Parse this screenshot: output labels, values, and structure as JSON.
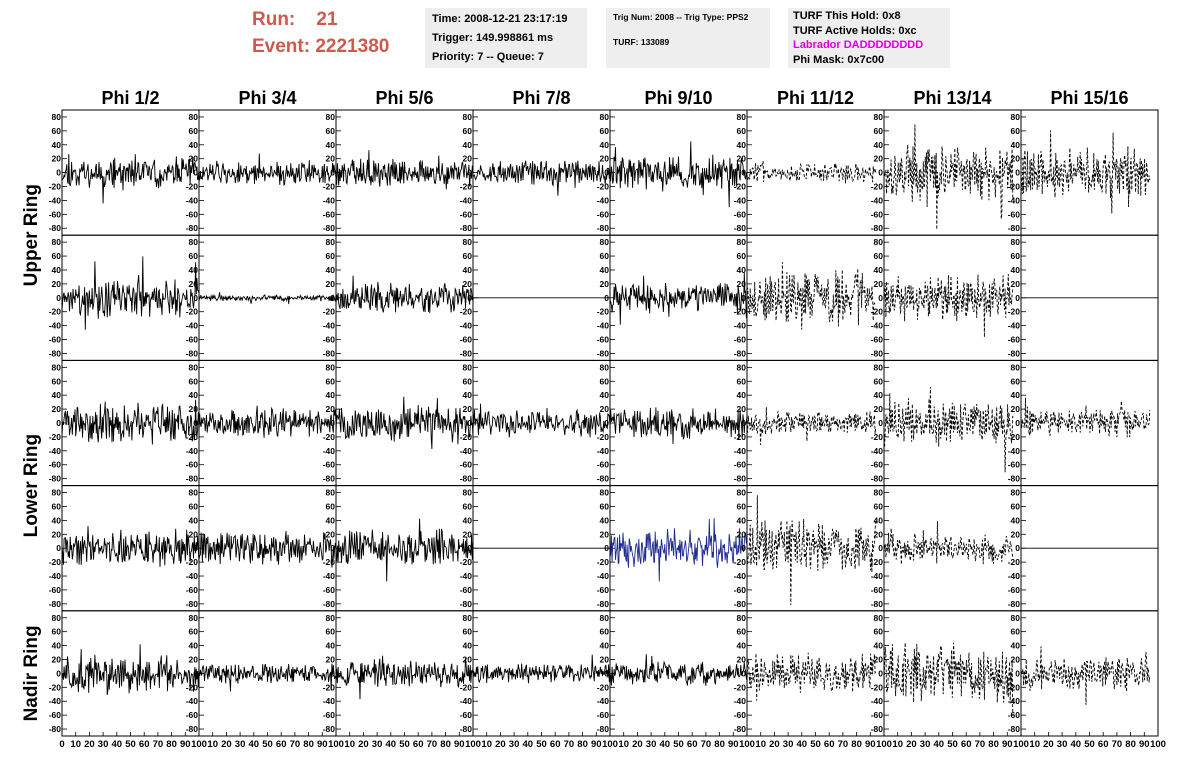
{
  "header": {
    "run_label": "Run:",
    "run_value": "21",
    "event_label": "Event:",
    "event_value": "2221380",
    "time": "Time: 2008-12-21 23:17:19",
    "trigger": "Trigger: 149.998861 ms",
    "priority": "Priority: 7 -- Queue: 7",
    "trig_num": "Trig Num: 2008 -- Trig Type: PPS2",
    "turf": "TURF: 133089",
    "turf_hold": "TURF This Hold: 0x8",
    "turf_active": "TURF Active Holds: 0xc",
    "labrador": "Labrador DADDDDDDDD",
    "phi_mask": "Phi Mask: 0x7c00"
  },
  "colors": {
    "run_text": "#d0584c",
    "labrador_text": "#e000e0",
    "highlight_trace": "#1f2a8f",
    "trace": "#000000"
  },
  "chart_data": {
    "type": "line",
    "layout": "grid",
    "columns": [
      "Phi 1/2",
      "Phi 3/4",
      "Phi 5/6",
      "Phi 7/8",
      "Phi 9/10",
      "Phi 11/12",
      "Phi 13/14",
      "Phi 15/16"
    ],
    "row_groups": [
      "Upper Ring",
      "Lower Ring",
      "Nadir Ring"
    ],
    "yticks": [
      "-80",
      "-60",
      "-40",
      "-20",
      "0",
      "20",
      "40",
      "60",
      "80"
    ],
    "xticks": [
      "0",
      "10",
      "20",
      "30",
      "40",
      "50",
      "60",
      "70",
      "80",
      "90",
      "100"
    ],
    "xlim": [
      0,
      100
    ],
    "ylim": [
      -90,
      90
    ],
    "grid": false,
    "panels": [
      {
        "row": 1,
        "col": 1,
        "style": "solid",
        "amplitude": 15,
        "seed": 11
      },
      {
        "row": 1,
        "col": 2,
        "style": "solid",
        "amplitude": 12,
        "seed": 12
      },
      {
        "row": 1,
        "col": 3,
        "style": "solid",
        "amplitude": 14,
        "seed": 13
      },
      {
        "row": 1,
        "col": 4,
        "style": "solid",
        "amplitude": 13,
        "seed": 14
      },
      {
        "row": 1,
        "col": 5,
        "style": "solid",
        "amplitude": 18,
        "seed": 15
      },
      {
        "row": 1,
        "col": 6,
        "style": "dashed",
        "amplitude": 10,
        "seed": 16
      },
      {
        "row": 1,
        "col": 7,
        "style": "dashed",
        "amplitude": 28,
        "seed": 17
      },
      {
        "row": 1,
        "col": 8,
        "style": "dashed",
        "amplitude": 25,
        "seed": 18
      },
      {
        "row": 2,
        "col": 1,
        "style": "solid",
        "amplitude": 20,
        "seed": 21
      },
      {
        "row": 2,
        "col": 2,
        "style": "solid",
        "amplitude": 3,
        "seed": 22
      },
      {
        "row": 2,
        "col": 3,
        "style": "solid",
        "amplitude": 15,
        "seed": 23
      },
      {
        "row": 2,
        "col": 4,
        "style": "flat",
        "amplitude": 0,
        "seed": 24
      },
      {
        "row": 2,
        "col": 5,
        "style": "solid",
        "amplitude": 15,
        "seed": 25
      },
      {
        "row": 2,
        "col": 6,
        "style": "dashed",
        "amplitude": 28,
        "seed": 26
      },
      {
        "row": 2,
        "col": 7,
        "style": "dashed",
        "amplitude": 22,
        "seed": 27
      },
      {
        "row": 2,
        "col": 8,
        "style": "flat",
        "amplitude": 0,
        "seed": 28
      },
      {
        "row": 3,
        "col": 1,
        "style": "solid",
        "amplitude": 20,
        "seed": 31
      },
      {
        "row": 3,
        "col": 2,
        "style": "solid",
        "amplitude": 14,
        "seed": 32
      },
      {
        "row": 3,
        "col": 3,
        "style": "solid",
        "amplitude": 18,
        "seed": 33
      },
      {
        "row": 3,
        "col": 4,
        "style": "solid",
        "amplitude": 14,
        "seed": 34
      },
      {
        "row": 3,
        "col": 5,
        "style": "solid",
        "amplitude": 16,
        "seed": 35
      },
      {
        "row": 3,
        "col": 6,
        "style": "dashed",
        "amplitude": 12,
        "seed": 36
      },
      {
        "row": 3,
        "col": 7,
        "style": "dashed",
        "amplitude": 24,
        "seed": 37
      },
      {
        "row": 3,
        "col": 8,
        "style": "dashed",
        "amplitude": 14,
        "seed": 38
      },
      {
        "row": 4,
        "col": 1,
        "style": "solid",
        "amplitude": 18,
        "seed": 41
      },
      {
        "row": 4,
        "col": 2,
        "style": "solid",
        "amplitude": 16,
        "seed": 42
      },
      {
        "row": 4,
        "col": 3,
        "style": "solid",
        "amplitude": 18,
        "seed": 43
      },
      {
        "row": 4,
        "col": 4,
        "style": "flat",
        "amplitude": 0,
        "seed": 44
      },
      {
        "row": 4,
        "col": 5,
        "style": "blue",
        "amplitude": 20,
        "seed": 45
      },
      {
        "row": 4,
        "col": 6,
        "style": "dashed",
        "amplitude": 28,
        "seed": 46
      },
      {
        "row": 4,
        "col": 7,
        "style": "dashed",
        "amplitude": 15,
        "seed": 47
      },
      {
        "row": 4,
        "col": 8,
        "style": "flat",
        "amplitude": 0,
        "seed": 48
      },
      {
        "row": 5,
        "col": 1,
        "style": "solid",
        "amplitude": 18,
        "seed": 51
      },
      {
        "row": 5,
        "col": 2,
        "style": "solid",
        "amplitude": 10,
        "seed": 52
      },
      {
        "row": 5,
        "col": 3,
        "style": "solid",
        "amplitude": 14,
        "seed": 53
      },
      {
        "row": 5,
        "col": 4,
        "style": "solid",
        "amplitude": 10,
        "seed": 54
      },
      {
        "row": 5,
        "col": 5,
        "style": "solid",
        "amplitude": 12,
        "seed": 55
      },
      {
        "row": 5,
        "col": 6,
        "style": "dashed",
        "amplitude": 20,
        "seed": 56
      },
      {
        "row": 5,
        "col": 7,
        "style": "dashed",
        "amplitude": 30,
        "seed": 57
      },
      {
        "row": 5,
        "col": 8,
        "style": "dashed",
        "amplitude": 18,
        "seed": 58
      }
    ]
  }
}
